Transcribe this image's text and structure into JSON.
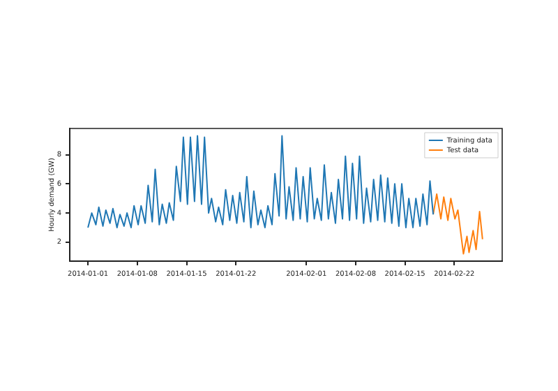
{
  "chart_data": {
    "type": "line",
    "ylabel": "Hourly demand (GW)",
    "xlim": [
      "2013-12-29T10:00",
      "2014-02-28T19:00"
    ],
    "xticks": [
      "2014-01-01",
      "2014-01-08",
      "2014-01-15",
      "2014-01-22",
      "2014-02-01",
      "2014-02-08",
      "2014-02-15",
      "2014-02-22"
    ],
    "ylim": [
      0.7,
      9.8
    ],
    "yticks": [
      2,
      4,
      6,
      8
    ],
    "grid": false,
    "legend": "top right",
    "marker": "none",
    "line_style": "solid",
    "series": [
      {
        "name": "Training data",
        "color": "#1f77b4",
        "x": [
          "2014-01-01T00:00",
          "2014-01-01T13:00",
          "2014-01-02T03:00",
          "2014-01-02T13:00",
          "2014-01-03T03:00",
          "2014-01-03T13:00",
          "2014-01-04T03:00",
          "2014-01-04T13:00",
          "2014-01-05T03:00",
          "2014-01-05T13:00",
          "2014-01-06T03:00",
          "2014-01-06T13:00",
          "2014-01-07T03:00",
          "2014-01-07T13:00",
          "2014-01-08T03:00",
          "2014-01-08T13:00",
          "2014-01-09T03:00",
          "2014-01-09T13:00",
          "2014-01-10T03:00",
          "2014-01-10T13:00",
          "2014-01-11T03:00",
          "2014-01-11T13:00",
          "2014-01-12T03:00",
          "2014-01-12T13:00",
          "2014-01-13T03:00",
          "2014-01-13T13:00",
          "2014-01-14T03:00",
          "2014-01-14T13:00",
          "2014-01-15T03:00",
          "2014-01-15T13:00",
          "2014-01-16T03:00",
          "2014-01-16T13:00",
          "2014-01-17T03:00",
          "2014-01-17T13:00",
          "2014-01-18T03:00",
          "2014-01-18T13:00",
          "2014-01-19T03:00",
          "2014-01-19T13:00",
          "2014-01-20T03:00",
          "2014-01-20T13:00",
          "2014-01-21T03:00",
          "2014-01-21T13:00",
          "2014-01-22T03:00",
          "2014-01-22T13:00",
          "2014-01-23T03:00",
          "2014-01-23T13:00",
          "2014-01-24T03:00",
          "2014-01-24T13:00",
          "2014-01-25T03:00",
          "2014-01-25T13:00",
          "2014-01-26T03:00",
          "2014-01-26T13:00",
          "2014-01-27T03:00",
          "2014-01-27T13:00",
          "2014-01-28T03:00",
          "2014-01-28T13:00",
          "2014-01-29T03:00",
          "2014-01-29T13:00",
          "2014-01-30T03:00",
          "2014-01-30T13:00",
          "2014-01-31T03:00",
          "2014-01-31T13:00",
          "2014-02-01T03:00",
          "2014-02-01T13:00",
          "2014-02-02T03:00",
          "2014-02-02T13:00",
          "2014-02-03T03:00",
          "2014-02-03T13:00",
          "2014-02-04T03:00",
          "2014-02-04T13:00",
          "2014-02-05T03:00",
          "2014-02-05T13:00",
          "2014-02-06T03:00",
          "2014-02-06T13:00",
          "2014-02-07T03:00",
          "2014-02-07T13:00",
          "2014-02-08T03:00",
          "2014-02-08T13:00",
          "2014-02-09T03:00",
          "2014-02-09T13:00",
          "2014-02-10T03:00",
          "2014-02-10T13:00",
          "2014-02-11T03:00",
          "2014-02-11T13:00",
          "2014-02-12T03:00",
          "2014-02-12T13:00",
          "2014-02-13T03:00",
          "2014-02-13T13:00",
          "2014-02-14T03:00",
          "2014-02-14T13:00",
          "2014-02-15T03:00",
          "2014-02-15T13:00",
          "2014-02-16T03:00",
          "2014-02-16T13:00",
          "2014-02-17T03:00",
          "2014-02-17T13:00",
          "2014-02-18T03:00",
          "2014-02-18T13:00",
          "2014-02-19T00:00"
        ],
        "values": [
          3.0,
          4.0,
          3.2,
          4.4,
          3.1,
          4.2,
          3.3,
          4.3,
          3.0,
          3.9,
          3.1,
          4.0,
          3.0,
          4.5,
          3.2,
          4.5,
          3.3,
          5.9,
          3.4,
          7.0,
          3.2,
          4.6,
          3.3,
          4.7,
          3.5,
          7.2,
          4.8,
          9.2,
          4.6,
          9.2,
          4.8,
          9.3,
          4.6,
          9.2,
          4.0,
          5.0,
          3.4,
          4.4,
          3.2,
          5.6,
          3.5,
          5.2,
          3.3,
          5.4,
          3.4,
          6.5,
          3.0,
          5.5,
          3.2,
          4.2,
          3.0,
          4.5,
          3.2,
          6.7,
          3.8,
          9.3,
          3.6,
          5.8,
          3.5,
          7.1,
          3.6,
          6.5,
          3.4,
          7.1,
          3.6,
          5.0,
          3.5,
          7.3,
          3.6,
          5.4,
          3.3,
          6.3,
          3.6,
          7.9,
          3.5,
          7.4,
          3.6,
          7.9,
          3.3,
          5.7,
          3.4,
          6.3,
          3.5,
          6.6,
          3.4,
          6.4,
          3.3,
          6.0,
          3.1,
          6.0,
          3.0,
          5.0,
          3.0,
          5.0,
          3.1,
          5.3,
          3.2,
          6.2,
          3.9
        ]
      },
      {
        "name": "Test data",
        "color": "#ff7f0e",
        "x": [
          "2014-02-19T00:00",
          "2014-02-19T12:00",
          "2014-02-20T02:00",
          "2014-02-20T12:00",
          "2014-02-21T02:00",
          "2014-02-21T12:00",
          "2014-02-22T02:00",
          "2014-02-22T12:00",
          "2014-02-23T07:00",
          "2014-02-23T19:00",
          "2014-02-24T02:00",
          "2014-02-24T16:00",
          "2014-02-25T02:00",
          "2014-02-25T14:00",
          "2014-02-26T00:00"
        ],
        "values": [
          3.9,
          5.3,
          3.6,
          5.1,
          3.5,
          5.0,
          3.6,
          4.2,
          1.2,
          2.4,
          1.3,
          2.8,
          1.5,
          4.1,
          2.2
        ]
      }
    ]
  }
}
